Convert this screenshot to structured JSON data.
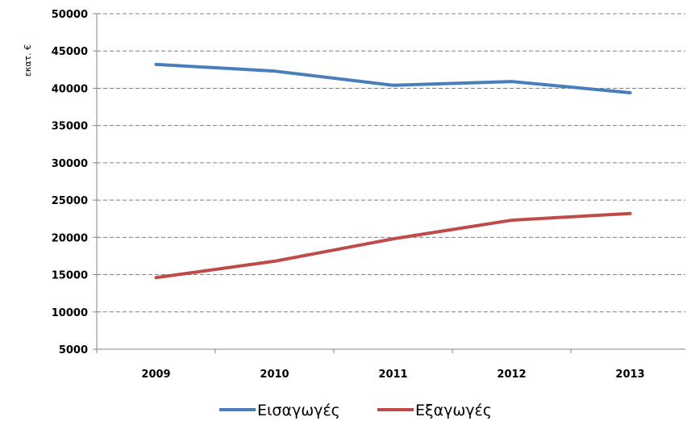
{
  "chart_data": {
    "type": "line",
    "title": "",
    "xlabel": "",
    "ylabel": "εκατ. €",
    "ylim": [
      5000,
      50000
    ],
    "yticks": [
      5000,
      10000,
      15000,
      20000,
      25000,
      30000,
      35000,
      40000,
      45000,
      50000
    ],
    "categories": [
      "2009",
      "2010",
      "2011",
      "2012",
      "2013"
    ],
    "grid": "horizontal dashed",
    "legend": "bottom",
    "series": [
      {
        "name": "Εισαγωγές",
        "color": "#4a7ebb",
        "values": [
          43200,
          42300,
          40400,
          40900,
          39400
        ]
      },
      {
        "name": "Εξαγωγές",
        "color": "#be4b48",
        "values": [
          14600,
          16800,
          19800,
          22300,
          23200
        ]
      }
    ]
  }
}
